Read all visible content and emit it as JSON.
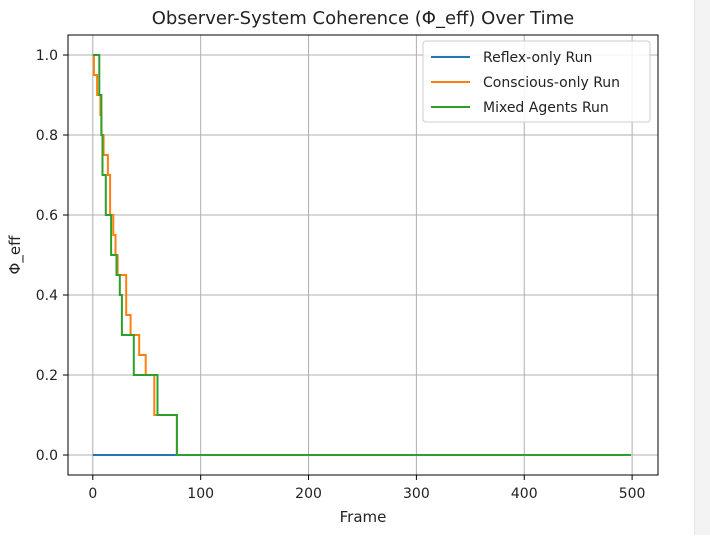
{
  "chart_data": {
    "type": "line",
    "title": "Observer-System Coherence (Φ_eff) Over Time",
    "xlabel": "Frame",
    "ylabel": "Φ_eff",
    "xlim": [
      -23,
      524
    ],
    "ylim": [
      -0.05,
      1.05
    ],
    "xticks": [
      0,
      100,
      200,
      300,
      400,
      500
    ],
    "yticks": [
      0.0,
      0.2,
      0.4,
      0.6,
      0.8,
      1.0
    ],
    "xtick_labels": [
      "0",
      "100",
      "200",
      "300",
      "400",
      "500"
    ],
    "ytick_labels": [
      "0.0",
      "0.2",
      "0.4",
      "0.6",
      "0.8",
      "1.0"
    ],
    "grid": true,
    "legend_position": "top-right",
    "series": [
      {
        "name": "Reflex-only Run",
        "color": "#1f77b4",
        "points": [
          [
            0,
            0.0
          ],
          [
            499,
            0.0
          ]
        ]
      },
      {
        "name": "Conscious-only Run",
        "color": "#ff7f0e",
        "points": [
          [
            0,
            1.0
          ],
          [
            1,
            0.95
          ],
          [
            4,
            0.9
          ],
          [
            7,
            0.85
          ],
          [
            8,
            0.8
          ],
          [
            10,
            0.75
          ],
          [
            14,
            0.7
          ],
          [
            16,
            0.6
          ],
          [
            19,
            0.55
          ],
          [
            21,
            0.5
          ],
          [
            23,
            0.45
          ],
          [
            31,
            0.35
          ],
          [
            35,
            0.3
          ],
          [
            43,
            0.25
          ],
          [
            49,
            0.2
          ],
          [
            57,
            0.1
          ],
          [
            78,
            0.0
          ],
          [
            499,
            0.0
          ]
        ]
      },
      {
        "name": "Mixed Agents Run",
        "color": "#2ca02c",
        "points": [
          [
            0,
            1.0
          ],
          [
            6,
            0.9
          ],
          [
            8,
            0.8
          ],
          [
            9,
            0.7
          ],
          [
            12,
            0.6
          ],
          [
            17,
            0.5
          ],
          [
            22,
            0.45
          ],
          [
            25,
            0.4
          ],
          [
            27,
            0.3
          ],
          [
            38,
            0.2
          ],
          [
            60,
            0.1
          ],
          [
            78,
            0.0
          ],
          [
            499,
            0.0
          ]
        ]
      }
    ]
  }
}
